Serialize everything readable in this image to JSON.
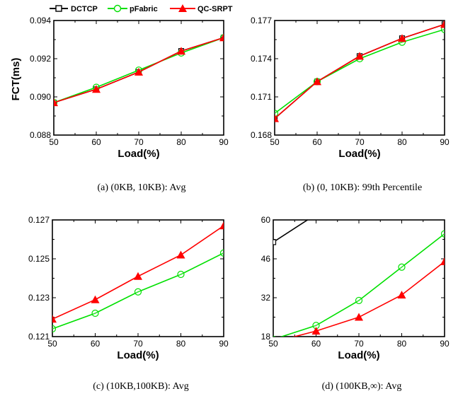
{
  "legend": {
    "items": [
      {
        "label": "DCTCP",
        "color": "#000000",
        "marker": "square"
      },
      {
        "label": "pFabric",
        "color": "#00e000",
        "marker": "circle"
      },
      {
        "label": "QC-SRPT",
        "color": "#ff0000",
        "marker": "triangle"
      }
    ]
  },
  "chart_data": [
    {
      "type": "line",
      "caption": "(a)  (0KB, 10KB): Avg",
      "xlabel": "Load(%)",
      "ylabel": "FCT(ms)",
      "x": [
        50,
        60,
        70,
        80,
        90
      ],
      "xticks": [
        "50",
        "60",
        "70",
        "80",
        "90"
      ],
      "xlim": [
        50,
        90
      ],
      "ylim": [
        0.088,
        0.094
      ],
      "yticks": [
        0.088,
        0.09,
        0.092,
        0.094
      ],
      "yticklabels": [
        "0.088",
        "0.090",
        "0.092",
        "0.094"
      ],
      "series": [
        {
          "name": "DCTCP",
          "values": [
            0.0897,
            0.0904,
            0.0913,
            0.0924,
            0.0931
          ]
        },
        {
          "name": "pFabric",
          "values": [
            0.0897,
            0.0905,
            0.0914,
            0.0923,
            0.0931
          ]
        },
        {
          "name": "QC-SRPT",
          "values": [
            0.0897,
            0.0904,
            0.0913,
            0.0924,
            0.0931
          ]
        }
      ]
    },
    {
      "type": "line",
      "caption": "(b)  (0, 10KB): 99th Percentile",
      "xlabel": "Load(%)",
      "ylabel": "",
      "x": [
        50,
        60,
        70,
        80,
        90
      ],
      "xticks": [
        "50",
        "60",
        "70",
        "80",
        "90"
      ],
      "xlim": [
        50,
        90
      ],
      "ylim": [
        0.168,
        0.177
      ],
      "yticks": [
        0.168,
        0.171,
        0.174,
        0.177
      ],
      "yticklabels": [
        "0.168",
        "0.171",
        "0.174",
        "0.177"
      ],
      "series": [
        {
          "name": "DCTCP",
          "values": [
            0.1693,
            0.1722,
            0.1742,
            0.1756,
            0.1767
          ]
        },
        {
          "name": "pFabric",
          "values": [
            0.1697,
            0.1722,
            0.174,
            0.1753,
            0.1763
          ]
        },
        {
          "name": "QC-SRPT",
          "values": [
            0.1693,
            0.1722,
            0.1742,
            0.1756,
            0.1767
          ]
        }
      ]
    },
    {
      "type": "line",
      "caption": "(c)  (10KB,100KB): Avg",
      "xlabel": "Load(%)",
      "ylabel": "",
      "x": [
        50,
        60,
        70,
        80,
        90
      ],
      "xticks": [
        "50",
        "60",
        "70",
        "80",
        "90"
      ],
      "xlim": [
        50,
        90
      ],
      "ylim": [
        0.121,
        0.127
      ],
      "yticks": [
        0.121,
        0.123,
        0.125,
        0.127
      ],
      "yticklabels": [
        "0.121",
        "0.123",
        "0.125",
        "0.127"
      ],
      "series": [
        {
          "name": "DCTCP",
          "values": [
            null,
            null,
            null,
            null,
            null
          ]
        },
        {
          "name": "pFabric",
          "values": [
            0.1214,
            0.1222,
            0.1233,
            0.1242,
            0.1253
          ]
        },
        {
          "name": "QC-SRPT",
          "values": [
            0.1219,
            0.1229,
            0.1241,
            0.1252,
            0.1267
          ]
        }
      ]
    },
    {
      "type": "line",
      "caption": "(d)  (100KB,∞): Avg",
      "xlabel": "Load(%)",
      "ylabel": "",
      "x": [
        50,
        60,
        70,
        80,
        90
      ],
      "xticks": [
        "50",
        "60",
        "70",
        "80",
        "90"
      ],
      "xlim": [
        50,
        90
      ],
      "ylim": [
        18,
        60
      ],
      "yticks": [
        18,
        32,
        46,
        60
      ],
      "yticklabels": [
        "18",
        "32",
        "46",
        "60"
      ],
      "series": [
        {
          "name": "DCTCP",
          "values": [
            52,
            62,
            null,
            null,
            null
          ]
        },
        {
          "name": "pFabric",
          "values": [
            17,
            22,
            31,
            43,
            55
          ]
        },
        {
          "name": "QC-SRPT",
          "values": [
            16,
            20,
            25,
            33,
            45
          ]
        }
      ]
    }
  ]
}
